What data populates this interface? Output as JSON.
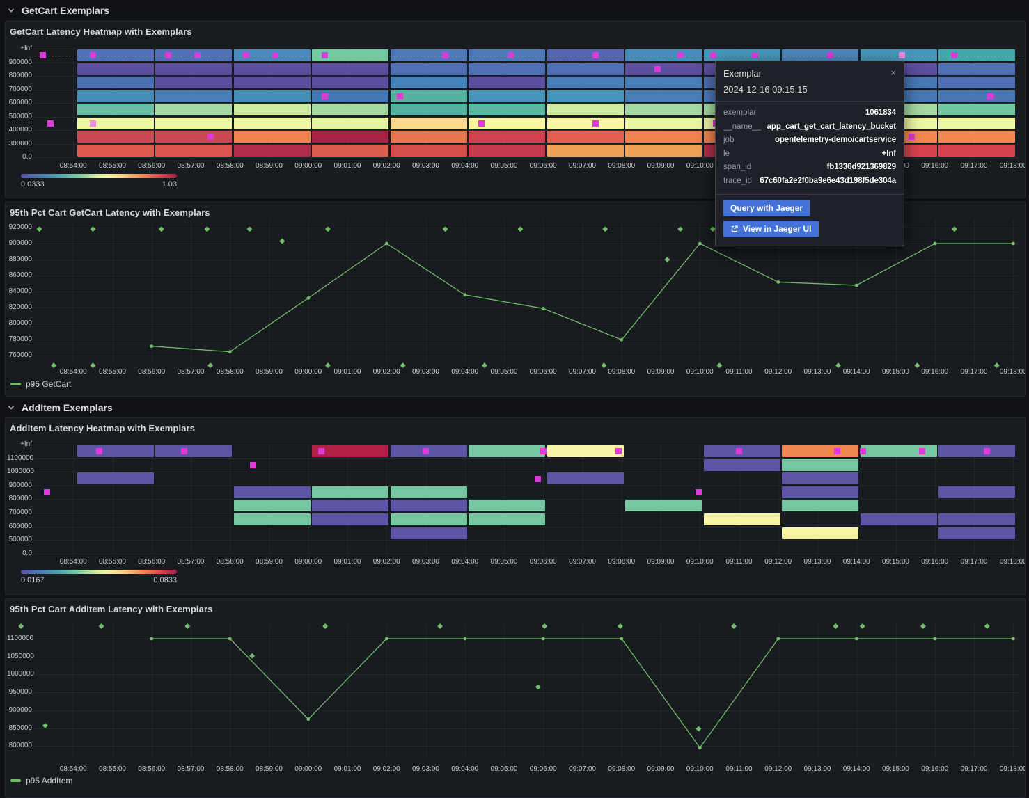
{
  "colors": {
    "series_green": "#73bf69",
    "exemplar_magenta": "#dd3ad8",
    "exemplar_highlight": "#ee8ae4",
    "button_blue": "#4472d8"
  },
  "icons": {
    "row_collapse": "chevron-down",
    "tooltip_close": "×",
    "external_link": "external-link"
  },
  "rows": [
    {
      "label": "GetCart Exemplars"
    },
    {
      "label": "AddItem Exemplars"
    }
  ],
  "time_axis": {
    "ticks": [
      "08:54:00",
      "08:55:00",
      "08:56:00",
      "08:57:00",
      "08:58:00",
      "08:59:00",
      "09:00:00",
      "09:01:00",
      "09:02:00",
      "09:03:00",
      "09:04:00",
      "09:05:00",
      "09:06:00",
      "09:07:00",
      "09:08:00",
      "09:09:00",
      "09:10:00",
      "09:11:00",
      "09:12:00",
      "09:13:00",
      "09:14:00",
      "09:15:00",
      "09:16:00",
      "09:17:00",
      "09:18:00"
    ]
  },
  "chart_data": [
    {
      "id": "getcart_heatmap",
      "type": "heatmap",
      "title": "GetCart Latency Heatmap with Exemplars",
      "y_labels": [
        "+Inf",
        "900000",
        "800000",
        "700000",
        "600000",
        "500000",
        "400000",
        "300000",
        "0.0"
      ],
      "bucket_minutes": 2,
      "colorbar": {
        "min_label": "0.0333",
        "max_label": "1.03"
      },
      "columns": [
        {
          "start": "08:54:06",
          "cells": [
            "#5270b5",
            "#5b4f9e",
            "#4a70b2",
            "#448eb5",
            "#68bda4",
            "#eef5a2",
            "#cc4852",
            "#dd5c4f"
          ]
        },
        {
          "start": "08:56:06",
          "cells": [
            "#5270b5",
            "#5b4f9e",
            "#5b4f9e",
            "#4a7cb6",
            "#a5d8a2",
            "#eef5a2",
            "#cc4852",
            "#d9534f"
          ]
        },
        {
          "start": "08:58:06",
          "cells": [
            "#4a87bb",
            "#5b4f9e",
            "#5b4f9e",
            "#448eb5",
            "#cdeca2",
            "#eef5a2",
            "#ef8350",
            "#b02d49"
          ]
        },
        {
          "start": "09:00:06",
          "cells": [
            "#72c8a0",
            "#5b4f9e",
            "#5b4f9e",
            "#4577b4",
            "#a5d8a2",
            "#e8f3a2",
            "#a82447",
            "#d95d4e"
          ]
        },
        {
          "start": "09:02:06",
          "cells": [
            "#4e79b7",
            "#4e6fb4",
            "#4583b8",
            "#55b2a0",
            "#55b2a0",
            "#fbd88c",
            "#e8764e",
            "#d44f4c"
          ]
        },
        {
          "start": "09:04:06",
          "cells": [
            "#4e79b7",
            "#4e6fb4",
            "#5b4f9e",
            "#4596ba",
            "#58b8a0",
            "#f8f5a2",
            "#cf4050",
            "#c43b4e"
          ]
        },
        {
          "start": "09:06:06",
          "cells": [
            "#5565b0",
            "#4e6fb4",
            "#4a7cb6",
            "#4596ba",
            "#cdeca2",
            "#f8f5a2",
            "#e2604f",
            "#f0a058"
          ]
        },
        {
          "start": "09:08:06",
          "cells": [
            "#468cba",
            "#5b4f9e",
            "#4a7cb6",
            "#4a7cb6",
            "#a5d8a2",
            "#e8f5a0",
            "#ef8350",
            "#f0a058"
          ]
        },
        {
          "start": "09:10:06",
          "cells": [
            "#4597ba",
            "#5b4f9e",
            "#4e6fb4",
            "#4879b6",
            "#a5d8a2",
            "#eef5a2",
            "#ef8350",
            "#b02d49"
          ]
        },
        {
          "start": "09:12:06",
          "cells": [
            "#4a87bb",
            "#4e6fb4",
            "#4e6fb4",
            "#4879b6",
            "#cdeca2",
            "#eef5a2",
            "#ef8350",
            "#d9534f"
          ]
        },
        {
          "start": "09:14:06",
          "cells": [
            "#4597ba",
            "#5b4f9e",
            "#4879b6",
            "#4879b6",
            "#a5d8a2",
            "#eef5a2",
            "#f08850",
            "#d9434f"
          ]
        },
        {
          "start": "09:16:06",
          "cells": [
            "#43a8ab",
            "#4e6fb4",
            "#4e6fb4",
            "#4879b6",
            "#74c6a0",
            "#eef5a2",
            "#f08850",
            "#d9434f"
          ]
        }
      ],
      "exemplars": [
        {
          "t": "08:53:13",
          "row": 0
        },
        {
          "t": "08:53:25",
          "row": 5
        },
        {
          "t": "08:54:30",
          "row": 0
        },
        {
          "t": "08:54:30",
          "row": 5,
          "light": true
        },
        {
          "t": "08:56:25",
          "row": 0
        },
        {
          "t": "08:57:10",
          "row": 0
        },
        {
          "t": "08:57:30",
          "row": 6
        },
        {
          "t": "08:58:25",
          "row": 0
        },
        {
          "t": "08:59:10",
          "row": 0
        },
        {
          "t": "09:00:25",
          "row": 0
        },
        {
          "t": "09:00:25",
          "row": 3
        },
        {
          "t": "09:02:20",
          "row": 3
        },
        {
          "t": "09:03:30",
          "row": 0
        },
        {
          "t": "09:04:25",
          "row": 5
        },
        {
          "t": "09:05:10",
          "row": 0
        },
        {
          "t": "09:07:20",
          "row": 0
        },
        {
          "t": "09:07:20",
          "row": 5
        },
        {
          "t": "09:08:55",
          "row": 1
        },
        {
          "t": "09:09:30",
          "row": 0
        },
        {
          "t": "09:10:20",
          "row": 0
        },
        {
          "t": "09:10:25",
          "row": 5
        },
        {
          "t": "09:11:25",
          "row": 0
        },
        {
          "t": "09:13:20",
          "row": 0
        },
        {
          "t": "09:15:10",
          "row": 0,
          "light": true
        },
        {
          "t": "09:15:25",
          "row": 6
        },
        {
          "t": "09:16:30",
          "row": 0
        },
        {
          "t": "09:17:25",
          "row": 3
        }
      ]
    },
    {
      "id": "p95_getcart",
      "type": "line",
      "title": "95th Pct Cart GetCart Latency with Exemplars",
      "legend": "p95 GetCart",
      "color": "#73bf69",
      "y_ticks": [
        "920000",
        "900000",
        "880000",
        "860000",
        "840000",
        "820000",
        "800000",
        "780000",
        "760000"
      ],
      "points": [
        [
          "08:56:00",
          772000
        ],
        [
          "08:58:00",
          765000
        ],
        [
          "09:00:00",
          832000
        ],
        [
          "09:02:00",
          900000
        ],
        [
          "09:04:00",
          836000
        ],
        [
          "09:06:00",
          819000
        ],
        [
          "09:08:00",
          780000
        ],
        [
          "09:10:00",
          900000
        ],
        [
          "09:12:00",
          852000
        ],
        [
          "09:14:00",
          848000
        ],
        [
          "09:16:00",
          900000
        ],
        [
          "09:18:00",
          900000
        ]
      ],
      "exemplars": [
        [
          "08:53:08",
          918000
        ],
        [
          "08:54:30",
          918000
        ],
        [
          "08:56:15",
          918000
        ],
        [
          "08:57:25",
          918000
        ],
        [
          "08:58:30",
          918000
        ],
        [
          "08:59:20",
          903000
        ],
        [
          "09:00:30",
          918000
        ],
        [
          "09:03:30",
          918000
        ],
        [
          "09:05:25",
          918000
        ],
        [
          "09:07:35",
          918000
        ],
        [
          "09:09:10",
          880000
        ],
        [
          "09:09:30",
          918000
        ],
        [
          "09:10:20",
          918000
        ],
        [
          "09:16:30",
          918000
        ],
        [
          "08:53:30",
          748000
        ],
        [
          "08:54:30",
          748000
        ],
        [
          "08:57:30",
          748000
        ],
        [
          "09:00:30",
          748000
        ],
        [
          "09:02:25",
          748000
        ],
        [
          "09:04:30",
          748000
        ],
        [
          "09:07:33",
          748000
        ],
        [
          "09:10:30",
          748000
        ],
        [
          "09:13:32",
          748000
        ],
        [
          "09:15:33",
          748000
        ],
        [
          "09:17:35",
          748000
        ]
      ]
    },
    {
      "id": "additem_heatmap",
      "type": "heatmap",
      "title": "AddItem Latency Heatmap with Exemplars",
      "y_labels": [
        "+Inf",
        "1100000",
        "1000000",
        "900000",
        "800000",
        "700000",
        "600000",
        "500000",
        "0.0"
      ],
      "bucket_minutes": 2,
      "colorbar": {
        "min_label": "0.0167",
        "max_label": "0.0833"
      },
      "columns": [
        {
          "start": "08:54:06",
          "cells": [
            "#5c55a6",
            null,
            "#5c55a6",
            null,
            null,
            null,
            null,
            null
          ]
        },
        {
          "start": "08:56:06",
          "cells": [
            "#5c55a6",
            null,
            null,
            null,
            null,
            null,
            null,
            null
          ]
        },
        {
          "start": "08:58:06",
          "cells": [
            null,
            null,
            null,
            "#5c55a6",
            "#76c7a1",
            "#76c7a1",
            null,
            null
          ]
        },
        {
          "start": "09:00:06",
          "cells": [
            "#b22047",
            null,
            null,
            "#76c7a1",
            "#5c55a6",
            "#5c55a6",
            null,
            null
          ]
        },
        {
          "start": "09:02:06",
          "cells": [
            "#5c55a6",
            null,
            null,
            "#76c7a1",
            "#5c55a6",
            "#76c7a1",
            "#5c55a6",
            null
          ]
        },
        {
          "start": "09:04:06",
          "cells": [
            "#76c7a1",
            null,
            null,
            null,
            "#76c7a1",
            "#76c7a1",
            null,
            null
          ]
        },
        {
          "start": "09:06:06",
          "cells": [
            "#f6f3a4",
            null,
            "#5c55a6",
            null,
            null,
            null,
            null,
            null
          ]
        },
        {
          "start": "09:08:06",
          "cells": [
            null,
            null,
            null,
            null,
            "#76c7a1",
            null,
            null,
            null
          ]
        },
        {
          "start": "09:10:06",
          "cells": [
            "#5c55a6",
            "#5c55a6",
            null,
            null,
            null,
            "#f6f3a4",
            null,
            null
          ]
        },
        {
          "start": "09:12:06",
          "cells": [
            "#f0864f",
            "#76c7a1",
            "#5c55a6",
            "#5c55a6",
            "#76c7a1",
            null,
            "#f6f3a4",
            null
          ]
        },
        {
          "start": "09:14:06",
          "cells": [
            "#76c7a1",
            null,
            null,
            null,
            null,
            "#5c55a6",
            null,
            null
          ]
        },
        {
          "start": "09:16:06",
          "cells": [
            "#5c55a6",
            null,
            null,
            "#5c55a6",
            null,
            "#5c55a6",
            "#5c55a6",
            null
          ]
        }
      ],
      "exemplars": [
        {
          "t": "08:53:20",
          "row": 3
        },
        {
          "t": "08:54:40",
          "row": 0
        },
        {
          "t": "08:56:50",
          "row": 0
        },
        {
          "t": "08:58:35",
          "row": 1
        },
        {
          "t": "09:00:20",
          "row": 0
        },
        {
          "t": "09:03:00",
          "row": 0
        },
        {
          "t": "09:05:52",
          "row": 2
        },
        {
          "t": "09:06:00",
          "row": 0
        },
        {
          "t": "09:07:55",
          "row": 0
        },
        {
          "t": "09:09:58",
          "row": 3
        },
        {
          "t": "09:11:00",
          "row": 0
        },
        {
          "t": "09:13:30",
          "row": 0
        },
        {
          "t": "09:14:10",
          "row": 0
        },
        {
          "t": "09:15:40",
          "row": 0
        },
        {
          "t": "09:17:20",
          "row": 0
        }
      ]
    },
    {
      "id": "p95_additem",
      "type": "line",
      "title": "95th Pct Cart AddItem Latency with Exemplars",
      "legend": "p95 AddItem",
      "color": "#73bf69",
      "y_ticks": [
        "1100000",
        "1050000",
        "1000000",
        "950000",
        "900000",
        "850000",
        "800000"
      ],
      "points": [
        [
          "08:56:00",
          1100000
        ],
        [
          "08:58:00",
          1100000
        ],
        [
          "09:00:00",
          875000
        ],
        [
          "09:02:00",
          1100000
        ],
        [
          "09:04:00",
          1100000
        ],
        [
          "09:06:00",
          1100000
        ],
        [
          "09:08:00",
          1100000
        ],
        [
          "09:10:00",
          795000
        ],
        [
          "09:12:00",
          1100000
        ],
        [
          "09:14:00",
          1100000
        ],
        [
          "09:16:00",
          1100000
        ],
        [
          "09:18:00",
          1100000
        ]
      ],
      "exemplars": [
        [
          "08:52:40",
          1135000
        ],
        [
          "08:53:17",
          857000
        ],
        [
          "08:54:43",
          1135000
        ],
        [
          "08:56:55",
          1135000
        ],
        [
          "08:58:34",
          1052000
        ],
        [
          "09:00:26",
          1135000
        ],
        [
          "09:03:22",
          1135000
        ],
        [
          "09:05:52",
          965000
        ],
        [
          "09:06:02",
          1135000
        ],
        [
          "09:07:58",
          1135000
        ],
        [
          "09:09:58",
          848000
        ],
        [
          "09:10:52",
          1135000
        ],
        [
          "09:13:28",
          1135000
        ],
        [
          "09:14:09",
          1135000
        ],
        [
          "09:15:42",
          1135000
        ],
        [
          "09:17:20",
          1135000
        ]
      ]
    }
  ],
  "tooltip": {
    "title": "Exemplar",
    "close": "×",
    "time": "2024-12-16 09:15:15",
    "fields": [
      {
        "k": "exemplar",
        "v": "1061834"
      },
      {
        "k": "__name__",
        "v": "app_cart_get_cart_latency_bucket"
      },
      {
        "k": "job",
        "v": "opentelemetry-demo/cartservice"
      },
      {
        "k": "le",
        "v": "+Inf"
      },
      {
        "k": "span_id",
        "v": "fb1336d921369829"
      },
      {
        "k": "trace_id",
        "v": "67c60fa2e2f0ba9e6e43d198f5de304a"
      }
    ],
    "buttons": [
      {
        "label": "Query with Jaeger"
      },
      {
        "label": "View in Jaeger UI"
      }
    ]
  }
}
